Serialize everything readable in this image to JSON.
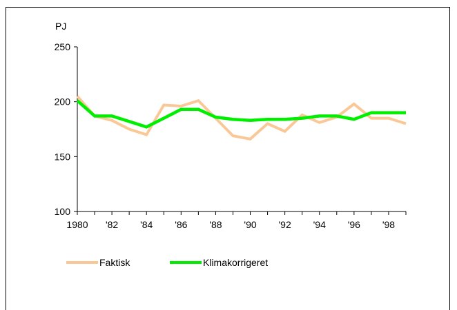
{
  "chart_data": {
    "type": "line",
    "ylabel": "PJ",
    "ylim": [
      100,
      250
    ],
    "yticks": [
      100,
      150,
      200,
      250
    ],
    "x": [
      1980,
      1981,
      1982,
      1983,
      1984,
      1985,
      1986,
      1987,
      1988,
      1989,
      1990,
      1991,
      1992,
      1993,
      1994,
      1995,
      1996,
      1997,
      1998,
      1999
    ],
    "xtick_labels": [
      "1980",
      "'82",
      "'84",
      "'86",
      "'88",
      "'90",
      "'92",
      "'94",
      "'96",
      "'98"
    ],
    "series": [
      {
        "name": "Faktisk",
        "color": "#FAC896",
        "values": [
          205,
          187,
          183,
          175,
          170,
          197,
          196,
          201,
          185,
          169,
          166,
          180,
          173,
          188,
          181,
          186,
          198,
          185,
          185,
          180
        ]
      },
      {
        "name": "Klimakorrigeret",
        "color": "#00EE00",
        "values": [
          201,
          187,
          187,
          182,
          177,
          185,
          193,
          193,
          186,
          184,
          183,
          184,
          184,
          185,
          187,
          187,
          184,
          190,
          190,
          190
        ]
      }
    ],
    "grid": false,
    "legend": "bottom-left"
  }
}
